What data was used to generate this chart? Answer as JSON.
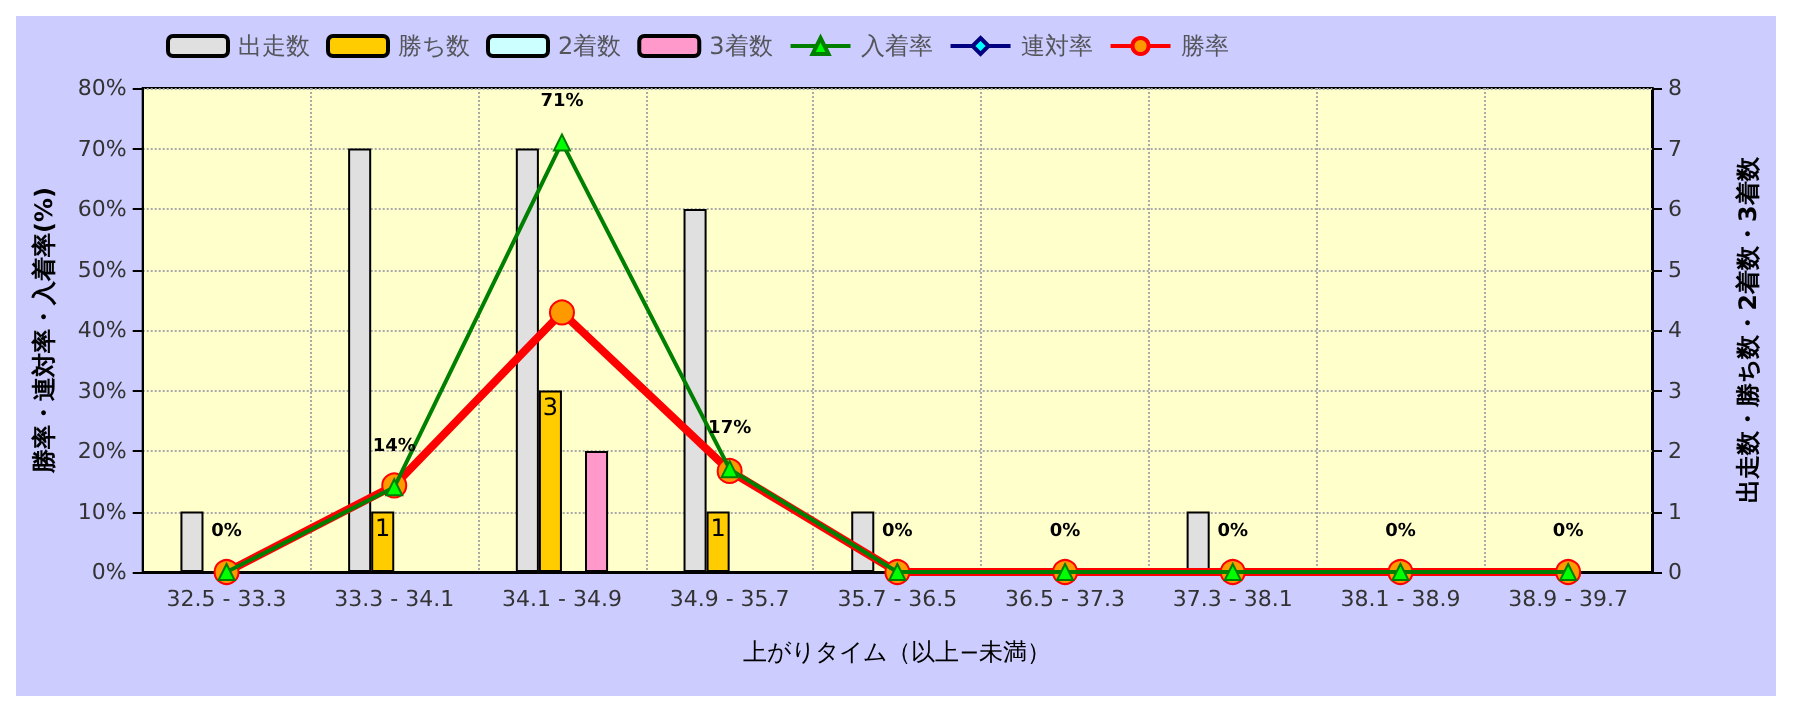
{
  "chart_data": {
    "type": "bar",
    "xlabel": "上がりタイム（以上−未満）",
    "ylabel": "勝率・連対率・入着率(%)",
    "y2label": "出走数・勝ち数・2着数・3着数",
    "categories": [
      "32.5 - 33.3",
      "33.3 - 34.1",
      "34.1 - 34.9",
      "34.9 - 35.7",
      "35.7 - 36.5",
      "36.5 - 37.3",
      "37.3 - 38.1",
      "38.1 - 38.9",
      "38.9 - 39.7"
    ],
    "series": [
      {
        "name": "出走数",
        "axis": "y2",
        "color": "#e0e0e0",
        "values": [
          1,
          7,
          7,
          6,
          1,
          0,
          1,
          0,
          0
        ]
      },
      {
        "name": "勝ち数",
        "axis": "y2",
        "color": "#ffcc00",
        "values": [
          0,
          1,
          3,
          1,
          0,
          0,
          0,
          0,
          0
        ],
        "value_labels": [
          null,
          "1",
          "3",
          "1",
          null,
          null,
          null,
          null,
          null
        ]
      },
      {
        "name": "2着数",
        "axis": "y2",
        "color": "#ccffff",
        "values": [
          0,
          0,
          0,
          0,
          0,
          0,
          0,
          0,
          0
        ]
      },
      {
        "name": "3着数",
        "axis": "y2",
        "color": "#ff99cc",
        "values": [
          0,
          0,
          2,
          0,
          0,
          0,
          0,
          0,
          0
        ]
      },
      {
        "name": "入着率",
        "type": "line",
        "color": "#008000",
        "marker": "triangle",
        "values": [
          0,
          14,
          71,
          17,
          0,
          0,
          0,
          0,
          0
        ],
        "value_labels": [
          "0%",
          "14%",
          "71%",
          "17%",
          "0%",
          "0%",
          "0%",
          "0%",
          "0%"
        ]
      },
      {
        "name": "連対率",
        "type": "line",
        "color": "#000080",
        "marker": "diamond",
        "values": [
          null,
          null,
          null,
          null,
          null,
          null,
          null,
          null,
          null
        ]
      },
      {
        "name": "勝率",
        "type": "line",
        "color": "#ff0000",
        "marker": "circle",
        "values": [
          0,
          14.3,
          42.9,
          16.7,
          0,
          0,
          0,
          0,
          0
        ]
      }
    ],
    "ylim": [
      0,
      80
    ],
    "yticks": [
      {
        "value": 0,
        "label": "0%"
      },
      {
        "value": 10,
        "label": "10%"
      },
      {
        "value": 20,
        "label": "20%"
      },
      {
        "value": 30,
        "label": "30%"
      },
      {
        "value": 40,
        "label": "40%"
      },
      {
        "value": 50,
        "label": "50%"
      },
      {
        "value": 60,
        "label": "60%"
      },
      {
        "value": 70,
        "label": "70%"
      },
      {
        "value": 80,
        "label": "80%"
      }
    ],
    "y2lim": [
      0,
      8
    ],
    "y2ticks": [
      0,
      1,
      2,
      3,
      4,
      5,
      6,
      7,
      8
    ],
    "grid": true,
    "legend": "top"
  }
}
